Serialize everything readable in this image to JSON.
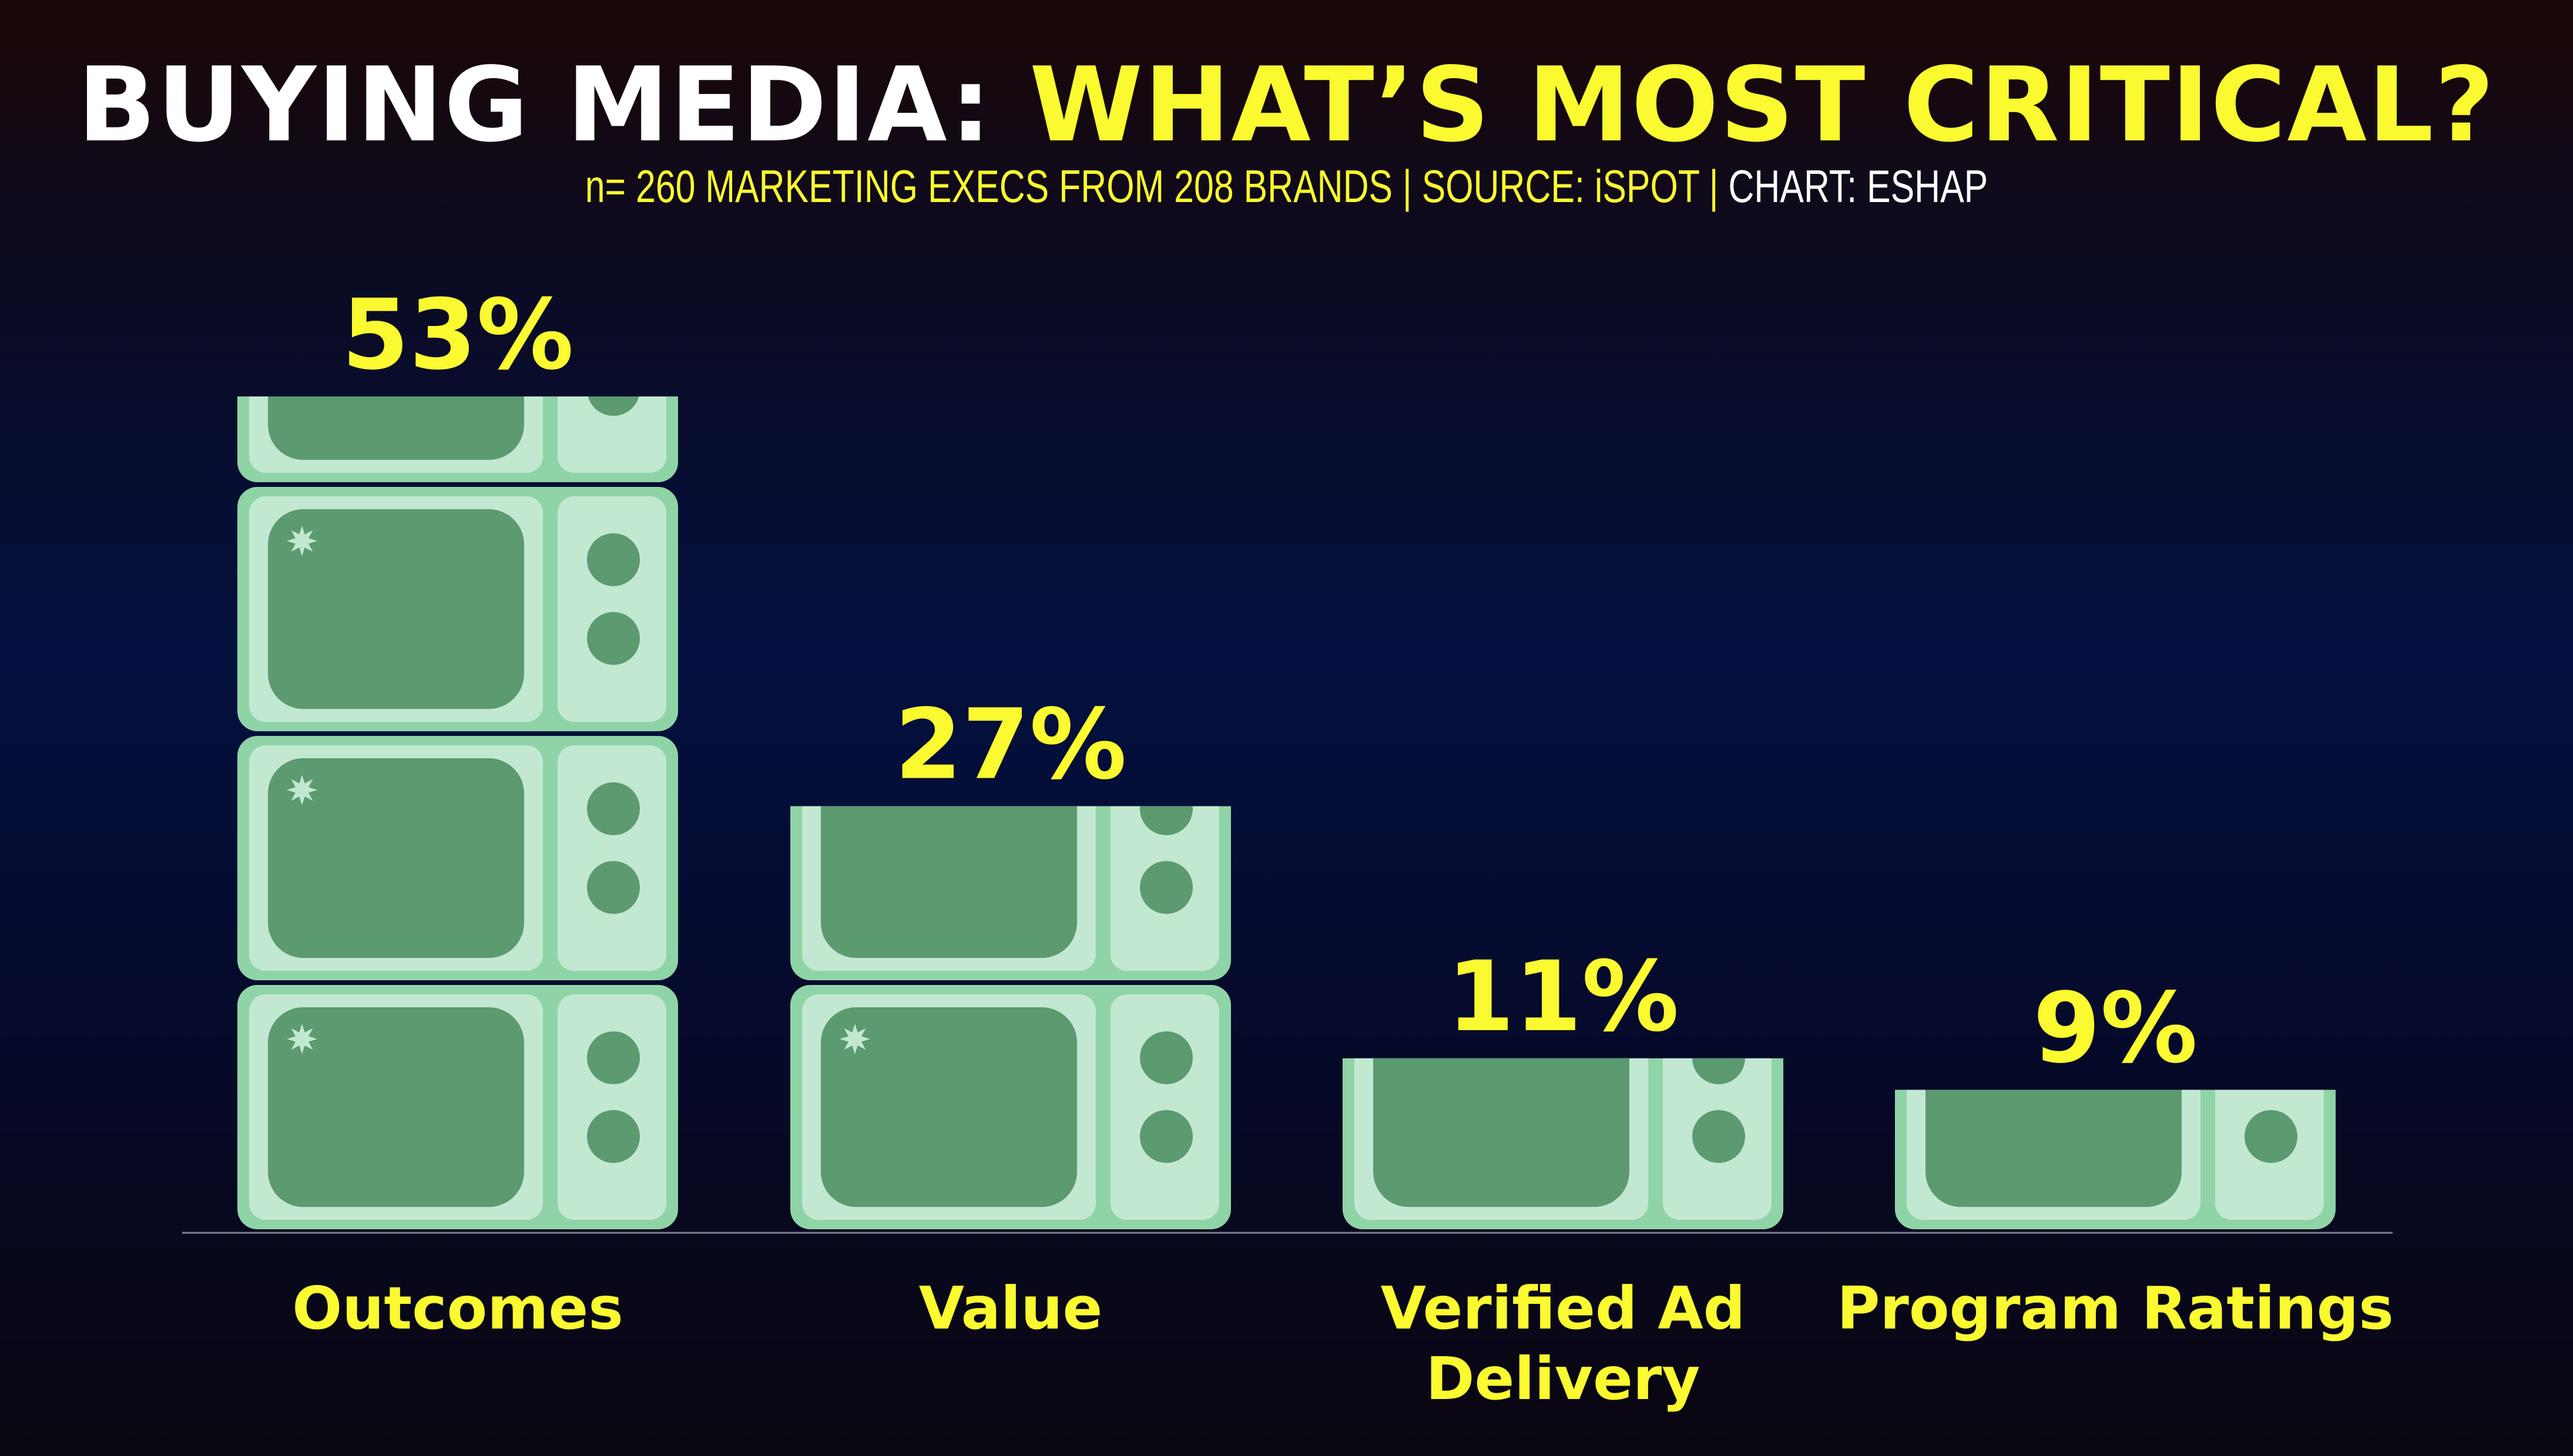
{
  "title": {
    "part1": "BUYING MEDIA: ",
    "part2": "WHAT’S MOST CRITICAL?"
  },
  "subtitle": {
    "part1": "n= 260 MARKETING EXECS FROM 208 BRANDS | SOURCE: iSPOT | ",
    "part2": "CHART: ESHAP"
  },
  "colors": {
    "highlight": "#fbf92f",
    "tv_body": "#8fd4a6",
    "tv_panel": "#c2e8d1",
    "tv_screen": "#5c9a70",
    "tv_knob": "#5c9a70",
    "baseline": "#7a7f90"
  },
  "chart_data": {
    "type": "bar",
    "categories": [
      "Outcomes",
      "Value",
      "Verified Ad Delivery",
      "Program Ratings"
    ],
    "category_lines": [
      [
        "Outcomes"
      ],
      [
        "Value"
      ],
      [
        "Verified Ad",
        "Delivery"
      ],
      [
        "Program Ratings"
      ]
    ],
    "values": [
      53,
      27,
      11,
      9
    ],
    "data_labels": [
      "53%",
      "27%",
      "11%",
      "9%"
    ],
    "unit": "%",
    "ylim": [
      0,
      53
    ],
    "grid": false,
    "bar_style": "stacked-tv-icons"
  }
}
